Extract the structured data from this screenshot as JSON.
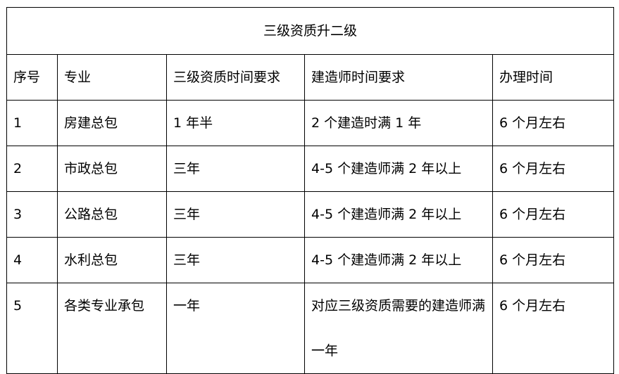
{
  "title": "三级资质升二级",
  "headers": [
    "序号",
    "专业",
    "三级资质时间要求",
    "建造师时间要求",
    "办理时间"
  ],
  "rows": [
    [
      "1",
      "房建总包",
      "1 年半",
      "2 个建造时满 1 年",
      "6 个月左右"
    ],
    [
      "2",
      "市政总包",
      "三年",
      "4-5 个建造师满 2 年以上",
      "6 个月左右"
    ],
    [
      "3",
      "公路总包",
      "三年",
      "4-5 个建造师满 2 年以上",
      "6 个月左右"
    ],
    [
      "4",
      "水利总包",
      "三年",
      "4-5 个建造师满 2 年以上",
      "6 个月左右"
    ],
    [
      "5",
      "各类专业承包",
      "一年",
      "对应三级资质需要的建造师满一年",
      "6 个月左右"
    ]
  ]
}
